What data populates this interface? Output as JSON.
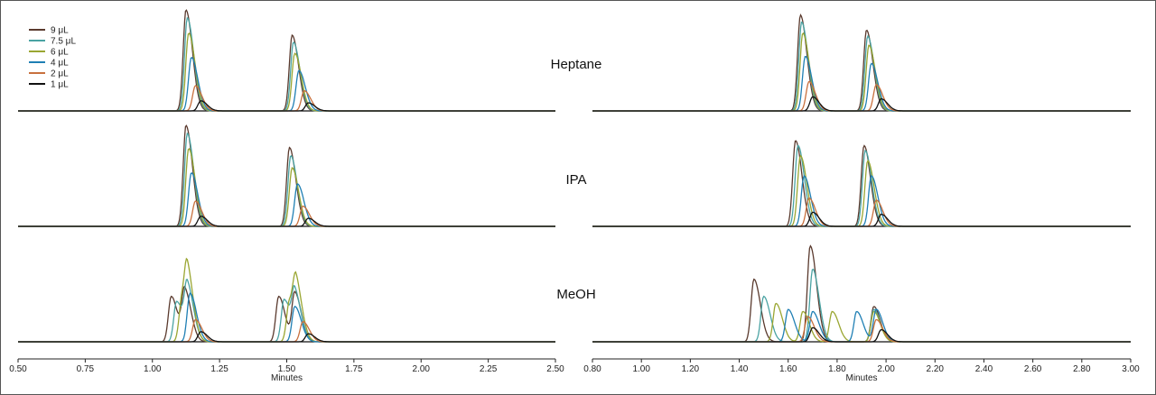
{
  "chart_data": [
    {
      "type": "line",
      "title": "",
      "xlabel": "Minutes",
      "ylabel": "",
      "xlim": [
        0.5,
        2.5
      ],
      "xticks": [
        "0.50",
        "0.75",
        "1.00",
        "1.25",
        "1.50",
        "1.75",
        "2.00",
        "2.25",
        "2.50"
      ],
      "legend": {
        "placement": "top-left",
        "entries": [
          {
            "name": "9 μL",
            "color": "#5a3a2e"
          },
          {
            "name": "7.5 μL",
            "color": "#4aa3a3"
          },
          {
            "name": "6 μL",
            "color": "#9aa632"
          },
          {
            "name": "4 μL",
            "color": "#1f7fb4"
          },
          {
            "name": "2 μL",
            "color": "#c8703e"
          },
          {
            "name": "1 μL",
            "color": "#111111"
          }
        ]
      },
      "panels": [
        {
          "label": "Heptane",
          "series": [
            {
              "name": "9 μL",
              "peaks": [
                [
                  1.125,
                  1.0
                ],
                [
                  1.52,
                  0.75
                ]
              ]
            },
            {
              "name": "7.5 μL",
              "peaks": [
                [
                  1.13,
                  0.92
                ],
                [
                  1.525,
                  0.68
                ]
              ]
            },
            {
              "name": "6 μL",
              "peaks": [
                [
                  1.135,
                  0.77
                ],
                [
                  1.53,
                  0.57
                ]
              ]
            },
            {
              "name": "4 μL",
              "peaks": [
                [
                  1.145,
                  0.53
                ],
                [
                  1.545,
                  0.4
                ]
              ]
            },
            {
              "name": "2 μL",
              "peaks": [
                [
                  1.16,
                  0.25
                ],
                [
                  1.565,
                  0.2
                ]
              ]
            },
            {
              "name": "1 μL",
              "peaks": [
                [
                  1.18,
                  0.1
                ],
                [
                  1.58,
                  0.08
                ]
              ]
            }
          ]
        },
        {
          "label": "IPA",
          "series": [
            {
              "name": "9 μL",
              "peaks": [
                [
                  1.125,
                  1.0
                ],
                [
                  1.51,
                  0.78
                ]
              ]
            },
            {
              "name": "7.5 μL",
              "peaks": [
                [
                  1.13,
                  0.92
                ],
                [
                  1.515,
                  0.7
                ]
              ]
            },
            {
              "name": "6 μL",
              "peaks": [
                [
                  1.135,
                  0.77
                ],
                [
                  1.52,
                  0.58
                ]
              ]
            },
            {
              "name": "4 μL",
              "peaks": [
                [
                  1.145,
                  0.53
                ],
                [
                  1.54,
                  0.42
                ]
              ]
            },
            {
              "name": "2 μL",
              "peaks": [
                [
                  1.16,
                  0.25
                ],
                [
                  1.56,
                  0.2
                ]
              ]
            },
            {
              "name": "1 μL",
              "peaks": [
                [
                  1.18,
                  0.1
                ],
                [
                  1.58,
                  0.08
                ]
              ]
            }
          ]
        },
        {
          "label": "MeOH",
          "series": [
            {
              "name": "9 μL",
              "peaks": [
                [
                  1.07,
                  0.45
                ],
                [
                  1.12,
                  0.5
                ],
                [
                  1.47,
                  0.45
                ],
                [
                  1.53,
                  0.48
                ]
              ]
            },
            {
              "name": "7.5 μL",
              "peaks": [
                [
                  1.09,
                  0.4
                ],
                [
                  1.13,
                  0.52
                ],
                [
                  1.49,
                  0.42
                ],
                [
                  1.53,
                  0.45
                ]
              ]
            },
            {
              "name": "6 μL",
              "peaks": [
                [
                  1.11,
                  0.42
                ],
                [
                  1.13,
                  0.52
                ],
                [
                  1.51,
                  0.4
                ],
                [
                  1.535,
                  0.45
                ]
              ]
            },
            {
              "name": "4 μL",
              "peaks": [
                [
                  1.14,
                  0.48
                ],
                [
                  1.53,
                  0.35
                ]
              ]
            },
            {
              "name": "2 μL",
              "peaks": [
                [
                  1.16,
                  0.22
                ],
                [
                  1.56,
                  0.2
                ]
              ]
            },
            {
              "name": "1 μL",
              "peaks": [
                [
                  1.18,
                  0.1
                ],
                [
                  1.58,
                  0.08
                ]
              ]
            }
          ]
        }
      ]
    },
    {
      "type": "line",
      "title": "",
      "xlabel": "Minutes",
      "ylabel": "",
      "xlim": [
        0.8,
        3.0
      ],
      "xticks": [
        "0.80",
        "1.00",
        "1.20",
        "1.40",
        "1.60",
        "1.80",
        "2.00",
        "2.20",
        "2.40",
        "2.60",
        "2.80",
        "3.00"
      ],
      "panels": [
        {
          "label": "Heptane",
          "series": [
            {
              "name": "9 μL",
              "peaks": [
                [
                  1.65,
                  0.95
                ],
                [
                  1.92,
                  0.8
                ]
              ]
            },
            {
              "name": "7.5 μL",
              "peaks": [
                [
                  1.655,
                  0.88
                ],
                [
                  1.925,
                  0.74
                ]
              ]
            },
            {
              "name": "6 μL",
              "peaks": [
                [
                  1.66,
                  0.77
                ],
                [
                  1.93,
                  0.65
                ]
              ]
            },
            {
              "name": "4 μL",
              "peaks": [
                [
                  1.67,
                  0.54
                ],
                [
                  1.94,
                  0.47
                ]
              ]
            },
            {
              "name": "2 μL",
              "peaks": [
                [
                  1.685,
                  0.29
                ],
                [
                  1.96,
                  0.26
                ]
              ]
            },
            {
              "name": "1 μL",
              "peaks": [
                [
                  1.7,
                  0.14
                ],
                [
                  1.98,
                  0.12
                ]
              ]
            }
          ]
        },
        {
          "label": "IPA",
          "series": [
            {
              "name": "9 μL",
              "peaks": [
                [
                  1.63,
                  0.85
                ],
                [
                  1.91,
                  0.8
                ]
              ]
            },
            {
              "name": "7.5 μL",
              "peaks": [
                [
                  1.64,
                  0.8
                ],
                [
                  1.915,
                  0.75
                ]
              ]
            },
            {
              "name": "6 μL",
              "peaks": [
                [
                  1.65,
                  0.7
                ],
                [
                  1.925,
                  0.65
                ]
              ]
            },
            {
              "name": "4 μL",
              "peaks": [
                [
                  1.665,
                  0.5
                ],
                [
                  1.94,
                  0.5
                ]
              ]
            },
            {
              "name": "2 μL",
              "peaks": [
                [
                  1.685,
                  0.28
                ],
                [
                  1.96,
                  0.26
                ]
              ]
            },
            {
              "name": "1 μL",
              "peaks": [
                [
                  1.7,
                  0.14
                ],
                [
                  1.98,
                  0.12
                ]
              ]
            }
          ]
        },
        {
          "label": "MeOH",
          "series": [
            {
              "name": "9 μL",
              "peaks": [
                [
                  1.46,
                  0.62
                ],
                [
                  1.69,
                  0.95
                ],
                [
                  1.95,
                  0.35
                ]
              ]
            },
            {
              "name": "7.5 μL",
              "peaks": [
                [
                  1.5,
                  0.45
                ],
                [
                  1.7,
                  0.72
                ],
                [
                  1.95,
                  0.32
                ]
              ]
            },
            {
              "name": "6 μL",
              "peaks": [
                [
                  1.55,
                  0.38
                ],
                [
                  1.66,
                  0.3
                ],
                [
                  1.78,
                  0.3
                ],
                [
                  1.95,
                  0.3
                ]
              ]
            },
            {
              "name": "4 μL",
              "peaks": [
                [
                  1.6,
                  0.32
                ],
                [
                  1.7,
                  0.3
                ],
                [
                  1.88,
                  0.3
                ],
                [
                  1.96,
                  0.32
                ]
              ]
            },
            {
              "name": "2 μL",
              "peaks": [
                [
                  1.68,
                  0.25
                ],
                [
                  1.96,
                  0.22
                ]
              ]
            },
            {
              "name": "1 μL",
              "peaks": [
                [
                  1.7,
                  0.14
                ],
                [
                  1.98,
                  0.12
                ]
              ]
            }
          ]
        }
      ]
    }
  ]
}
